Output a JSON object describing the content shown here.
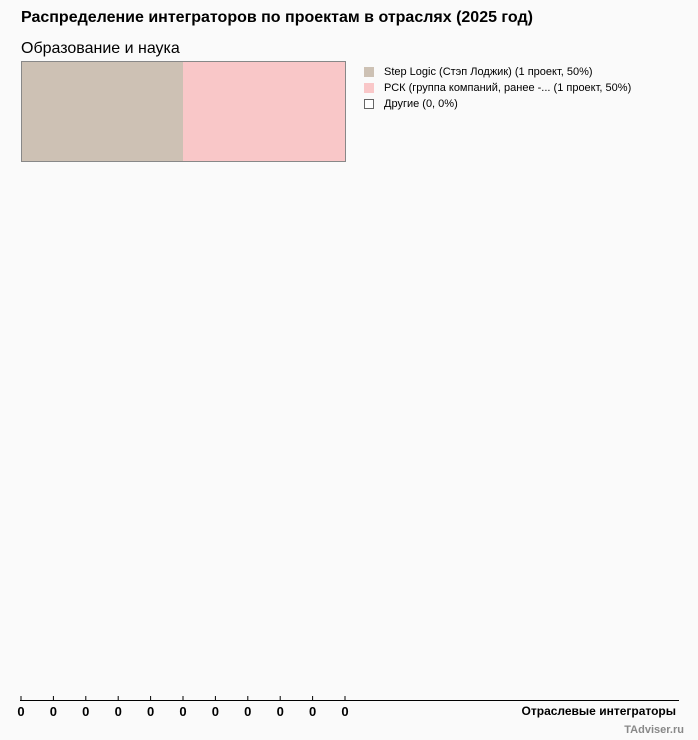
{
  "chart_data": {
    "type": "treemap",
    "title": "Распределение интеграторов по проектам в отраслях (2025 год)",
    "subtitle": "Образование и наука",
    "items": [
      {
        "name": "Step Logic (Стэп Лоджик) (1 проект, 50%)",
        "value": 1,
        "percent": 50,
        "color": "#cdc1b4"
      },
      {
        "name": "РСК (группа компаний, ранее -... (1 проект, 50%)",
        "value": 1,
        "percent": 50,
        "color": "#f9c7c8"
      },
      {
        "name": "Другие (0, 0%)",
        "value": 0,
        "percent": 0,
        "color": "#ffffff"
      }
    ],
    "xaxis_ticks": [
      "0",
      "0",
      "0",
      "0",
      "0",
      "0",
      "0",
      "0",
      "0",
      "0",
      "0"
    ],
    "xlabel": "Отраслевые интеграторы",
    "legend_position": "right"
  },
  "credit": "TAdviser.ru"
}
